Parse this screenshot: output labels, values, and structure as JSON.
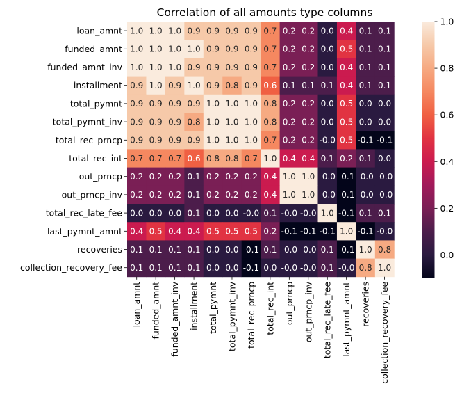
{
  "chart_data": {
    "type": "heatmap",
    "title": "Correlation of all amounts type columns",
    "xlabel": "",
    "ylabel": "",
    "rows": [
      "loan_amnt",
      "funded_amnt",
      "funded_amnt_inv",
      "installment",
      "total_pymnt",
      "total_pymnt_inv",
      "total_rec_prncp",
      "total_rec_int",
      "out_prncp",
      "out_prncp_inv",
      "total_rec_late_fee",
      "last_pymnt_amnt",
      "recoveries",
      "collection_recovery_fee"
    ],
    "columns": [
      "loan_amnt",
      "funded_amnt",
      "funded_amnt_inv",
      "installment",
      "total_pymnt",
      "total_pymnt_inv",
      "total_rec_prncp",
      "total_rec_int",
      "out_prncp",
      "out_prncp_inv",
      "total_rec_late_fee",
      "last_pymnt_amnt",
      "recoveries",
      "collection_recovery_fee"
    ],
    "values": [
      [
        1.0,
        1.0,
        1.0,
        0.9,
        0.9,
        0.9,
        0.9,
        0.7,
        0.2,
        0.2,
        0.0,
        0.4,
        0.1,
        0.1
      ],
      [
        1.0,
        1.0,
        1.0,
        1.0,
        0.9,
        0.9,
        0.9,
        0.7,
        0.2,
        0.2,
        0.0,
        0.5,
        0.1,
        0.1
      ],
      [
        1.0,
        1.0,
        1.0,
        0.9,
        0.9,
        0.9,
        0.9,
        0.7,
        0.2,
        0.2,
        0.0,
        0.4,
        0.1,
        0.1
      ],
      [
        0.9,
        1.0,
        0.9,
        1.0,
        0.9,
        0.8,
        0.9,
        0.6,
        0.1,
        0.1,
        0.1,
        0.4,
        0.1,
        0.1
      ],
      [
        0.9,
        0.9,
        0.9,
        0.9,
        1.0,
        1.0,
        1.0,
        0.8,
        0.2,
        0.2,
        0.0,
        0.5,
        0.0,
        0.0
      ],
      [
        0.9,
        0.9,
        0.9,
        0.8,
        1.0,
        1.0,
        1.0,
        0.8,
        0.2,
        0.2,
        0.0,
        0.5,
        0.0,
        0.0
      ],
      [
        0.9,
        0.9,
        0.9,
        0.9,
        1.0,
        1.0,
        1.0,
        0.7,
        0.2,
        0.2,
        -0.0,
        0.5,
        -0.1,
        -0.1
      ],
      [
        0.7,
        0.7,
        0.7,
        0.6,
        0.8,
        0.8,
        0.7,
        1.0,
        0.4,
        0.4,
        0.1,
        0.2,
        0.1,
        0.0
      ],
      [
        0.2,
        0.2,
        0.2,
        0.1,
        0.2,
        0.2,
        0.2,
        0.4,
        1.0,
        1.0,
        -0.0,
        -0.1,
        -0.0,
        -0.0
      ],
      [
        0.2,
        0.2,
        0.2,
        0.1,
        0.2,
        0.2,
        0.2,
        0.4,
        1.0,
        1.0,
        -0.0,
        -0.1,
        -0.0,
        -0.0
      ],
      [
        0.0,
        0.0,
        0.0,
        0.1,
        0.0,
        0.0,
        -0.0,
        0.1,
        -0.0,
        -0.0,
        1.0,
        -0.1,
        0.1,
        0.1
      ],
      [
        0.4,
        0.5,
        0.4,
        0.4,
        0.5,
        0.5,
        0.5,
        0.2,
        -0.1,
        -0.1,
        -0.1,
        1.0,
        -0.1,
        -0.0
      ],
      [
        0.1,
        0.1,
        0.1,
        0.1,
        0.0,
        0.0,
        -0.1,
        0.1,
        -0.0,
        -0.0,
        0.1,
        -0.1,
        1.0,
        0.8
      ],
      [
        0.1,
        0.1,
        0.1,
        0.1,
        0.0,
        0.0,
        -0.1,
        0.0,
        -0.0,
        -0.0,
        0.1,
        -0.0,
        0.8,
        1.0
      ]
    ],
    "value_labels": [
      [
        "1.0",
        "1.0",
        "1.0",
        "0.9",
        "0.9",
        "0.9",
        "0.9",
        "0.7",
        "0.2",
        "0.2",
        "0.0",
        "0.4",
        "0.1",
        "0.1"
      ],
      [
        "1.0",
        "1.0",
        "1.0",
        "1.0",
        "0.9",
        "0.9",
        "0.9",
        "0.7",
        "0.2",
        "0.2",
        "0.0",
        "0.5",
        "0.1",
        "0.1"
      ],
      [
        "1.0",
        "1.0",
        "1.0",
        "0.9",
        "0.9",
        "0.9",
        "0.9",
        "0.7",
        "0.2",
        "0.2",
        "0.0",
        "0.4",
        "0.1",
        "0.1"
      ],
      [
        "0.9",
        "1.0",
        "0.9",
        "1.0",
        "0.9",
        "0.8",
        "0.9",
        "0.6",
        "0.1",
        "0.1",
        "0.1",
        "0.4",
        "0.1",
        "0.1"
      ],
      [
        "0.9",
        "0.9",
        "0.9",
        "0.9",
        "1.0",
        "1.0",
        "1.0",
        "0.8",
        "0.2",
        "0.2",
        "0.0",
        "0.5",
        "0.0",
        "0.0"
      ],
      [
        "0.9",
        "0.9",
        "0.9",
        "0.8",
        "1.0",
        "1.0",
        "1.0",
        "0.8",
        "0.2",
        "0.2",
        "0.0",
        "0.5",
        "0.0",
        "0.0"
      ],
      [
        "0.9",
        "0.9",
        "0.9",
        "0.9",
        "1.0",
        "1.0",
        "1.0",
        "0.7",
        "0.2",
        "0.2",
        "-0.0",
        "0.5",
        "-0.1",
        "-0.1"
      ],
      [
        "0.7",
        "0.7",
        "0.7",
        "0.6",
        "0.8",
        "0.8",
        "0.7",
        "1.0",
        "0.4",
        "0.4",
        "0.1",
        "0.2",
        "0.1",
        "0.0"
      ],
      [
        "0.2",
        "0.2",
        "0.2",
        "0.1",
        "0.2",
        "0.2",
        "0.2",
        "0.4",
        "1.0",
        "1.0",
        "-0.0",
        "-0.1",
        "-0.0",
        "-0.0"
      ],
      [
        "0.2",
        "0.2",
        "0.2",
        "0.1",
        "0.2",
        "0.2",
        "0.2",
        "0.4",
        "1.0",
        "1.0",
        "-0.0",
        "-0.1",
        "-0.0",
        "-0.0"
      ],
      [
        "0.0",
        "0.0",
        "0.0",
        "0.1",
        "0.0",
        "0.0",
        "-0.0",
        "0.1",
        "-0.0",
        "-0.0",
        "1.0",
        "-0.1",
        "0.1",
        "0.1"
      ],
      [
        "0.4",
        "0.5",
        "0.4",
        "0.4",
        "0.5",
        "0.5",
        "0.5",
        "0.2",
        "-0.1",
        "-0.1",
        "-0.1",
        "1.0",
        "-0.1",
        "-0.0"
      ],
      [
        "0.1",
        "0.1",
        "0.1",
        "0.1",
        "0.0",
        "0.0",
        "-0.1",
        "0.1",
        "-0.0",
        "-0.0",
        "0.1",
        "-0.1",
        "1.0",
        "0.8"
      ],
      [
        "0.1",
        "0.1",
        "0.1",
        "0.1",
        "0.0",
        "0.0",
        "-0.1",
        "0.0",
        "-0.0",
        "-0.0",
        "0.1",
        "-0.0",
        "0.8",
        "1.0"
      ]
    ],
    "colorbar": {
      "range": [
        -0.1,
        1.0
      ],
      "ticks": [
        0.0,
        0.2,
        0.4,
        0.6,
        0.8,
        1.0
      ],
      "tick_labels": [
        "0.0",
        "0.2",
        "0.4",
        "0.6",
        "0.8",
        "1.0"
      ],
      "colormap": "rocket",
      "colormap_stops": [
        "#03051a",
        "#2a1a40",
        "#4c1d4b",
        "#7a1f55",
        "#a11a5b",
        "#cb1b4f",
        "#e13342",
        "#f06043",
        "#f58860",
        "#f6aa82",
        "#f6c9a9",
        "#faebdd"
      ]
    },
    "grid": false,
    "legend": "colorbar-right"
  }
}
